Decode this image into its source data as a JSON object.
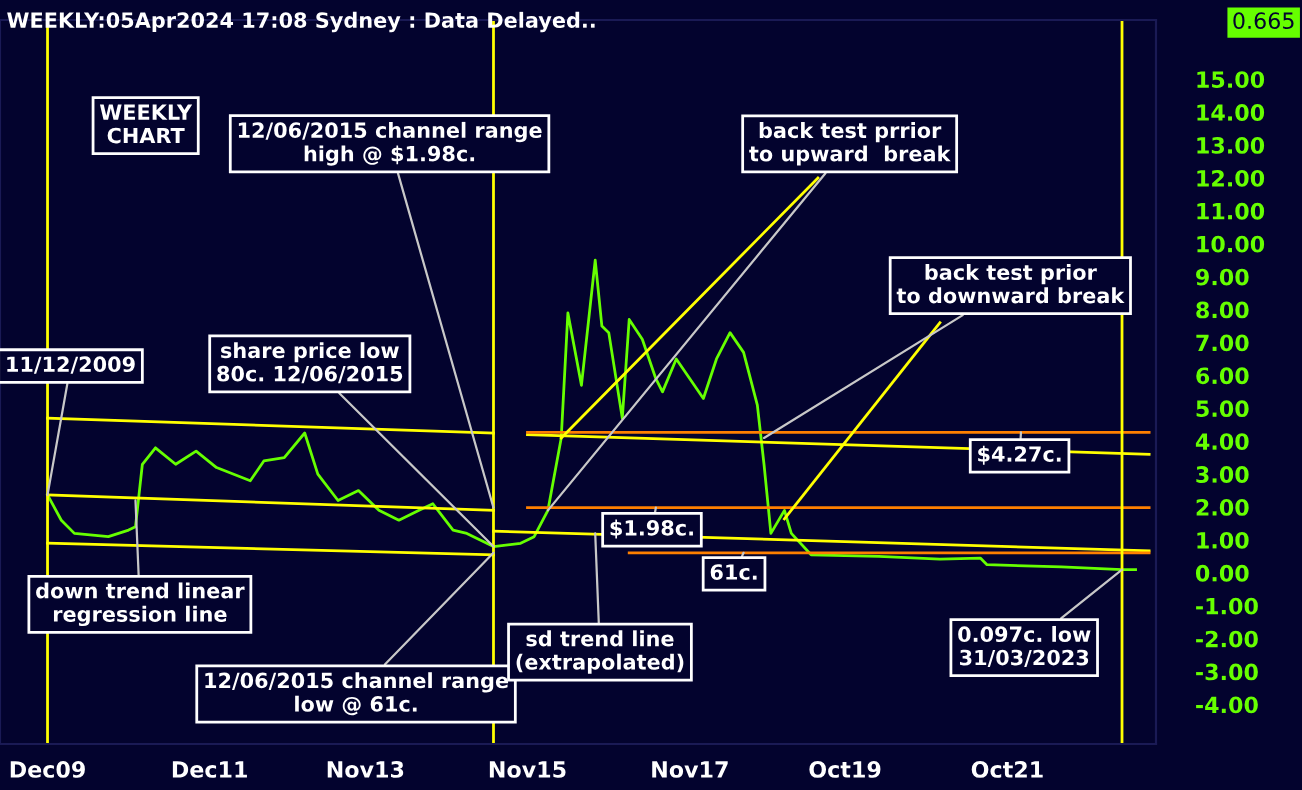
{
  "chart_data": {
    "type": "line",
    "title": "WEEKLY:05Apr2024 17:08 Sydney : Data Delayed..",
    "xlim": [
      "2009-05",
      "2023-08"
    ],
    "xticks": [
      {
        "value": "2009-12",
        "label": "Dec09"
      },
      {
        "value": "2011-12",
        "label": "Dec11"
      },
      {
        "value": "2013-11",
        "label": "Nov13"
      },
      {
        "value": "2015-11",
        "label": "Nov15"
      },
      {
        "value": "2017-11",
        "label": "Nov17"
      },
      {
        "value": "2019-10",
        "label": "Oct19"
      },
      {
        "value": "2021-10",
        "label": "Oct21"
      }
    ],
    "ylim": [
      -5.2,
      16.8
    ],
    "yticks": [
      {
        "value": 15,
        "label": "15.00"
      },
      {
        "value": 14,
        "label": "14.00"
      },
      {
        "value": 13,
        "label": "13.00"
      },
      {
        "value": 12,
        "label": "12.00"
      },
      {
        "value": 11,
        "label": "11.00"
      },
      {
        "value": 10,
        "label": "10.00"
      },
      {
        "value": 9,
        "label": "9.00"
      },
      {
        "value": 8,
        "label": "8.00"
      },
      {
        "value": 7,
        "label": "7.00"
      },
      {
        "value": 6,
        "label": "6.00"
      },
      {
        "value": 5,
        "label": "5.00"
      },
      {
        "value": 4,
        "label": "4.00"
      },
      {
        "value": 3,
        "label": "3.00"
      },
      {
        "value": 2,
        "label": "2.00"
      },
      {
        "value": 1,
        "label": "1.00"
      },
      {
        "value": 0,
        "label": "0.00"
      },
      {
        "value": -1,
        "label": "-1.00"
      },
      {
        "value": -2,
        "label": "-2.00"
      },
      {
        "value": -3,
        "label": "-3.00"
      },
      {
        "value": -4,
        "label": "-4.00"
      }
    ],
    "grid": false,
    "legend": false,
    "series": [
      {
        "color": "#66ff00",
        "x": [
          "2009-12",
          "2010-02",
          "2010-04",
          "2010-09",
          "2010-12",
          "2011-01",
          "2011-02",
          "2011-04",
          "2011-07",
          "2011-10",
          "2012-01",
          "2012-06",
          "2012-08",
          "2012-11",
          "2013-02",
          "2013-04",
          "2013-07",
          "2013-10",
          "2014-01",
          "2014-04",
          "2014-07",
          "2014-09",
          "2014-12",
          "2015-02",
          "2015-06",
          "2015-10",
          "2015-12",
          "2016-02",
          "2016-04",
          "2016-05",
          "2016-07",
          "2016-09",
          "2016-10",
          "2016-11",
          "2017-01",
          "2017-02",
          "2017-04",
          "2017-06",
          "2017-07",
          "2017-09",
          "2017-11",
          "2018-01",
          "2018-03",
          "2018-05",
          "2018-07",
          "2018-09",
          "2018-10",
          "2018-11",
          "2019-01",
          "2019-02",
          "2019-05",
          "2020-03",
          "2020-12",
          "2021-06",
          "2021-07",
          "2022-06",
          "2023-03",
          "2023-05"
        ],
        "values": [
          2.37,
          1.6,
          1.2,
          1.1,
          1.3,
          1.4,
          3.3,
          3.8,
          3.3,
          3.7,
          3.2,
          2.8,
          3.4,
          3.5,
          4.25,
          3.0,
          2.2,
          2.5,
          1.9,
          1.6,
          1.9,
          2.1,
          1.3,
          1.2,
          0.8,
          0.9,
          1.1,
          1.9,
          4.1,
          7.9,
          5.7,
          9.5,
          7.5,
          7.3,
          4.7,
          7.7,
          7.1,
          5.9,
          5.5,
          6.5,
          5.9,
          5.3,
          6.5,
          7.3,
          6.7,
          5.1,
          3.3,
          1.2,
          1.9,
          1.2,
          0.55,
          0.5,
          0.42,
          0.45,
          0.25,
          0.18,
          0.1,
          0.1
        ]
      },
      {
        "color": "#ffff00",
        "x": [
          "2009-12",
          "2015-06"
        ],
        "values": [
          4.7,
          4.25
        ]
      },
      {
        "color": "#ffff00",
        "x": [
          "2009-12",
          "2015-06"
        ],
        "values": [
          2.37,
          1.9
        ]
      },
      {
        "color": "#ffff00",
        "x": [
          "2009-12",
          "2015-06"
        ],
        "values": [
          0.9,
          0.55
        ]
      },
      {
        "color": "#ffff00",
        "x": [
          "2015-11",
          "2023-07"
        ],
        "values": [
          4.2,
          3.6
        ]
      },
      {
        "color": "#ffff00",
        "x": [
          "2015-06",
          "2023-07"
        ],
        "values": [
          1.27,
          0.67
        ]
      },
      {
        "color": "#ff8000",
        "x": [
          "2015-11",
          "2023-07"
        ],
        "values": [
          4.27,
          4.27
        ]
      },
      {
        "color": "#ff8000",
        "x": [
          "2015-11",
          "2023-07"
        ],
        "values": [
          1.98,
          1.98
        ]
      },
      {
        "color": "#ff8000",
        "x": [
          "2017-02",
          "2023-07"
        ],
        "values": [
          0.61,
          0.61
        ]
      },
      {
        "color": "#ffff00",
        "x": [
          "2016-04",
          "2019-06"
        ],
        "values": [
          4.1,
          12.0
        ]
      },
      {
        "color": "#ffff00",
        "x": [
          "2019-01",
          "2020-12"
        ],
        "values": [
          1.64,
          7.6
        ]
      }
    ],
    "ref_lines": [
      {
        "axis": "x",
        "value": "2009-12",
        "color": "#ffff00"
      },
      {
        "axis": "x",
        "value": "2015-06",
        "color": "#ffff00"
      },
      {
        "axis": "x",
        "value": "2023-03",
        "color": "#ffff00"
      }
    ],
    "annotations": [
      "WEEKLY\nCHART",
      {
        "text": "11/12/2009",
        "x": "2009-12",
        "y": 2.37
      },
      {
        "text": "12/06/2015 channel range\nhigh @ $1.98c.",
        "x": "2015-06",
        "y": 1.98
      },
      {
        "text": "share price low\n80c. 12/06/2015",
        "x": "2015-06",
        "y": 0.8
      },
      {
        "text": "down trend linear\nregression line",
        "x": "2011-01",
        "y": 2.2
      },
      {
        "text": "12/06/2015 channel range\nlow @ 61c.",
        "x": "2015-06",
        "y": 0.61
      },
      {
        "text": "sd trend line\n(extrapolated)",
        "x": "2016-09",
        "y": 1.2
      },
      {
        "text": "back test prrior\nto upward  break",
        "x": "2016-02",
        "y": 1.9
      },
      {
        "text": "back test prior\nto downward break",
        "x": "2018-10",
        "y": 4.1
      },
      {
        "text": "$1.98c.",
        "x": "2017-06",
        "y": 1.98
      },
      {
        "text": "61c.",
        "x": "2018-07",
        "y": 0.61
      },
      {
        "text": "$4.27c.",
        "x": "2021-12",
        "y": 4.27
      },
      {
        "text": "0.097c. low\n31/03/2023",
        "x": "2023-03",
        "y": 0.097
      },
      "0.665"
    ]
  }
}
